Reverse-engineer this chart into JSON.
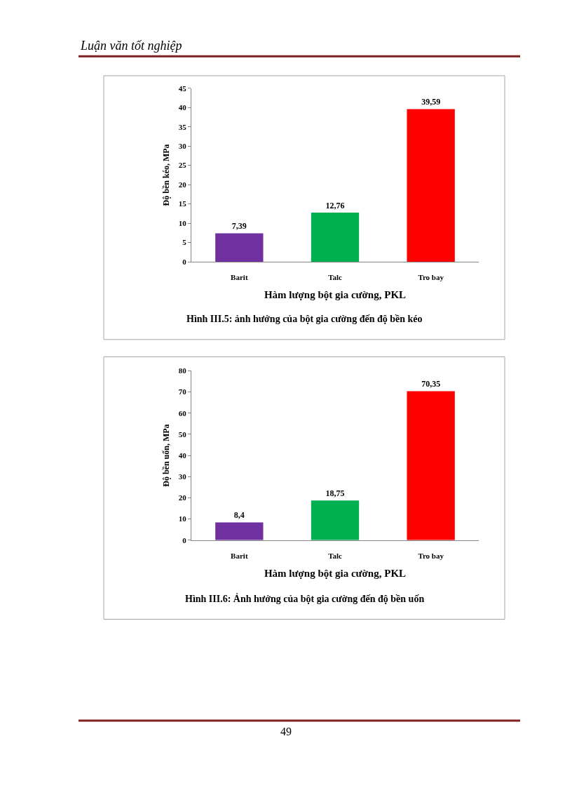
{
  "chart_data": [
    {
      "type": "bar",
      "categories": [
        "Barit",
        "Talc",
        "Tro bay"
      ],
      "values": [
        7.39,
        12.76,
        39.59
      ],
      "colors": [
        "#7030a0",
        "#00b050",
        "#ff0000"
      ],
      "value_labels": [
        "7,39",
        "12,76",
        "39,59"
      ],
      "ylabel": "Độ bền kéo, MPa",
      "xlabel": "Hàm lượng bột gia cường, PKL",
      "ylim": [
        0,
        45
      ],
      "yticks": [
        0,
        5,
        10,
        15,
        20,
        25,
        30,
        35,
        40,
        45
      ],
      "grid": false,
      "annotations": [
        "Hình III.5: ảnh hưởng của bột gia cường đến độ bền kéo",
        "Luận văn tốt nghiệp"
      ]
    },
    {
      "type": "bar",
      "categories": [
        "Barit",
        "Talc",
        "Tro bay"
      ],
      "values": [
        8.4,
        18.75,
        70.35
      ],
      "colors": [
        "#7030a0",
        "#00b050",
        "#ff0000"
      ],
      "value_labels": [
        "8,4",
        "18,75",
        "70,35"
      ],
      "ylabel": "Độ bền uốn, MPa",
      "xlabel": "Hàm lượng bột gia cường, PKL",
      "ylim": [
        0,
        80
      ],
      "yticks": [
        0,
        10,
        20,
        30,
        40,
        50,
        60,
        70,
        80
      ],
      "grid": false,
      "annotations": [
        "Hình III.6: Ảnh hưởng của bột gia cường đến độ bền uốn",
        "49"
      ]
    }
  ]
}
